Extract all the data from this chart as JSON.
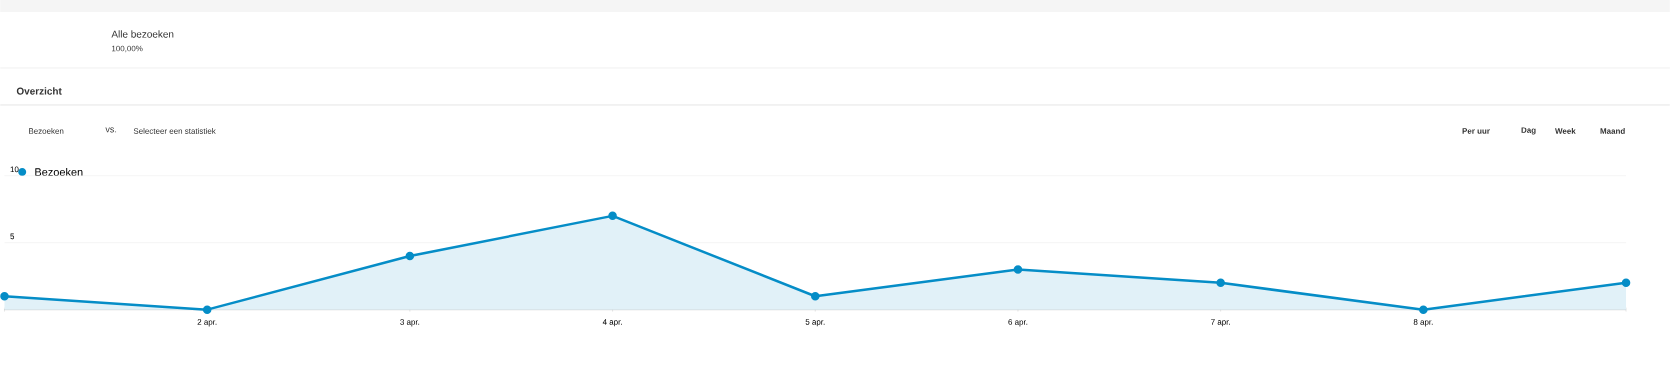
{
  "chart_data": {
    "type": "area",
    "categories": [
      null,
      "2 apr.",
      "3 apr.",
      "4 apr.",
      "5 apr.",
      "6 apr.",
      "7 apr.",
      "8 apr.",
      null
    ],
    "series": [
      {
        "name": "Bezoeken",
        "color": "#058dc7",
        "values": [
          1,
          0,
          4,
          7,
          1,
          3,
          2,
          0,
          2
        ]
      }
    ],
    "ylim": [
      0,
      10
    ],
    "yticks": [
      5,
      10
    ],
    "grid": "y",
    "legend": "top left",
    "marker": "circle",
    "annotations": [
      "Alle bezoeken",
      "100,00%",
      "Overzicht",
      "Bezoeken",
      "vs.",
      "Selecteer een statistiek",
      "Per uur",
      "Dag",
      "Week",
      "Maand"
    ]
  }
}
